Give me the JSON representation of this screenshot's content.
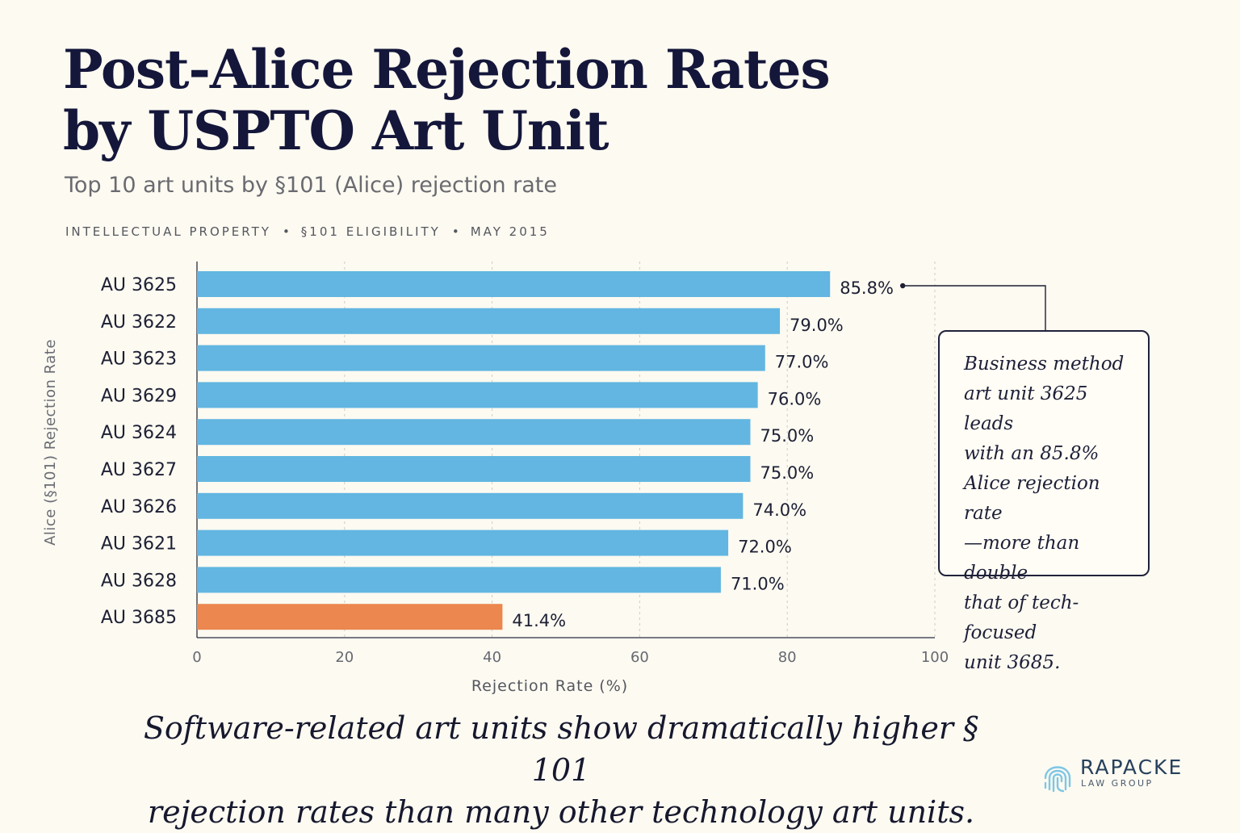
{
  "header": {
    "title_line1": "Post-Alice Rejection Rates",
    "title_line2": "by USPTO Art Unit",
    "subtitle": "Top 10 art units by §101 (Alice) rejection rate",
    "meta": [
      "INTELLECTUAL PROPERTY",
      "§101 ELIGIBILITY",
      "MAY 2015"
    ],
    "meta_separator": "•"
  },
  "chart_data": {
    "type": "bar",
    "orientation": "horizontal",
    "categories": [
      "AU 3625",
      "AU 3622",
      "AU 3623",
      "AU 3629",
      "AU 3624",
      "AU 3627",
      "AU 3626",
      "AU 3621",
      "AU 3628",
      "AU 3685"
    ],
    "values": [
      85.8,
      79.0,
      77.0,
      76.0,
      75.0,
      75.0,
      74.0,
      72.0,
      71.0,
      41.4
    ],
    "value_labels": [
      "85.8%",
      "79.0%",
      "77.0%",
      "76.0%",
      "75.0%",
      "75.0%",
      "74.0%",
      "72.0%",
      "71.0%",
      "41.4%"
    ],
    "xlabel": "Rejection Rate (%)",
    "ylabel": "Alice (§101) Rejection Rate",
    "xlim": [
      0,
      100
    ],
    "xticks": [
      0,
      20,
      40,
      60,
      80,
      100
    ],
    "grid": "vertical dashed",
    "colors": {
      "default_bar": "#62b6e1",
      "highlight_bar": "#eb874f",
      "highlight_category": "AU 3685"
    }
  },
  "callout": {
    "text": "Business method art unit 3625 leads with an 85.8% Alice rejection rate —more than double that of tech-focused unit 3685.",
    "lines": [
      "Business method",
      "art unit 3625 leads",
      "with an 85.8%",
      "Alice rejection rate",
      "—more than double",
      "that of tech-focused",
      "unit 3685."
    ],
    "points_to": "AU 3625"
  },
  "footnote": {
    "line1": "Software-related art units show dramatically higher § 101",
    "line2": "rejection rates than many other technology art units."
  },
  "logo": {
    "name": "RAPACKE",
    "sub": "LAW GROUP",
    "icon": "fingerprint-icon"
  }
}
